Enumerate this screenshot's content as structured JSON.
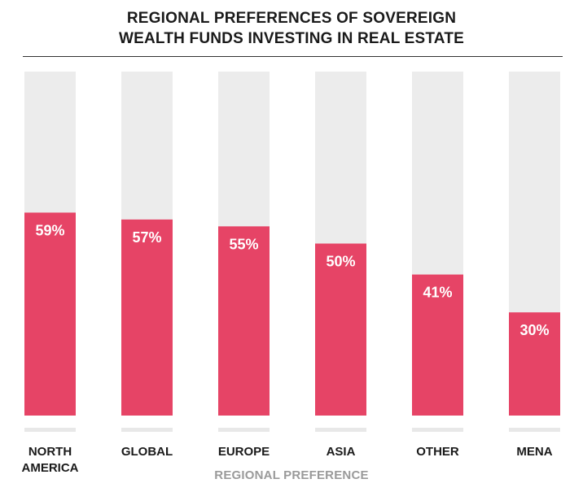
{
  "chart_data": {
    "type": "bar",
    "title_lines": [
      "REGIONAL PREFERENCES OF SOVEREIGN",
      "WEALTH FUNDS INVESTING IN REAL ESTATE"
    ],
    "xlabel": "REGIONAL PREFERENCE",
    "ylabel": "",
    "categories": [
      {
        "lines": [
          "NORTH",
          "AMERICA"
        ]
      },
      {
        "lines": [
          "GLOBAL"
        ]
      },
      {
        "lines": [
          "EUROPE"
        ]
      },
      {
        "lines": [
          "ASIA"
        ]
      },
      {
        "lines": [
          "OTHER"
        ]
      },
      {
        "lines": [
          "MENA"
        ]
      }
    ],
    "values": [
      59,
      57,
      55,
      50,
      41,
      30
    ],
    "value_labels": [
      "59%",
      "57%",
      "55%",
      "50%",
      "41%",
      "30%"
    ],
    "ylim": [
      0,
      100
    ],
    "grid": false,
    "colors": {
      "bar": "#e64466",
      "track": "#ececec",
      "baseline": "#e8e8e8",
      "title": "#1a1a1a",
      "xlabel": "#9a9a9a"
    }
  }
}
